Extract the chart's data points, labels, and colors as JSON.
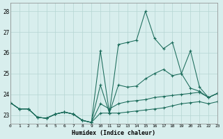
{
  "xlabel": "Humidex (Indice chaleur)",
  "xlim": [
    0,
    23
  ],
  "ylim": [
    22.6,
    28.4
  ],
  "yticks": [
    23,
    24,
    25,
    26,
    27,
    28
  ],
  "xticks": [
    0,
    1,
    2,
    3,
    4,
    5,
    6,
    7,
    8,
    9,
    10,
    11,
    12,
    13,
    14,
    15,
    16,
    17,
    18,
    19,
    20,
    21,
    22,
    23
  ],
  "xtick_labels": [
    "0",
    "1",
    "2",
    "3",
    "4",
    "5",
    "6",
    "7",
    "8",
    "9",
    "10",
    "11",
    "12",
    "13",
    "14",
    "15",
    "16",
    "17",
    "18",
    "19",
    "20",
    "21",
    "22",
    "23"
  ],
  "bg_color": "#d8eeed",
  "grid_color": "#b5d5d2",
  "line_color": "#1a6b5a",
  "series": [
    [
      23.6,
      23.3,
      23.3,
      22.9,
      22.85,
      23.05,
      23.15,
      23.05,
      22.75,
      22.65,
      26.1,
      23.1,
      26.4,
      26.5,
      26.6,
      28.0,
      26.7,
      26.2,
      26.5,
      25.0,
      26.1,
      24.35,
      23.85,
      24.05
    ],
    [
      23.6,
      23.3,
      23.3,
      22.9,
      22.85,
      23.05,
      23.15,
      23.05,
      22.75,
      22.65,
      24.45,
      23.1,
      24.45,
      24.35,
      24.4,
      24.75,
      25.0,
      25.2,
      24.9,
      25.0,
      24.3,
      24.15,
      23.85,
      24.05
    ],
    [
      23.6,
      23.3,
      23.3,
      22.9,
      22.85,
      23.05,
      23.15,
      23.05,
      22.75,
      22.65,
      23.55,
      23.3,
      23.55,
      23.65,
      23.7,
      23.75,
      23.85,
      23.9,
      23.95,
      24.0,
      24.05,
      24.1,
      23.85,
      24.05
    ],
    [
      23.6,
      23.3,
      23.3,
      22.9,
      22.85,
      23.05,
      23.15,
      23.05,
      22.75,
      22.65,
      23.1,
      23.1,
      23.1,
      23.15,
      23.2,
      23.25,
      23.3,
      23.35,
      23.45,
      23.55,
      23.6,
      23.65,
      23.55,
      23.65
    ]
  ]
}
